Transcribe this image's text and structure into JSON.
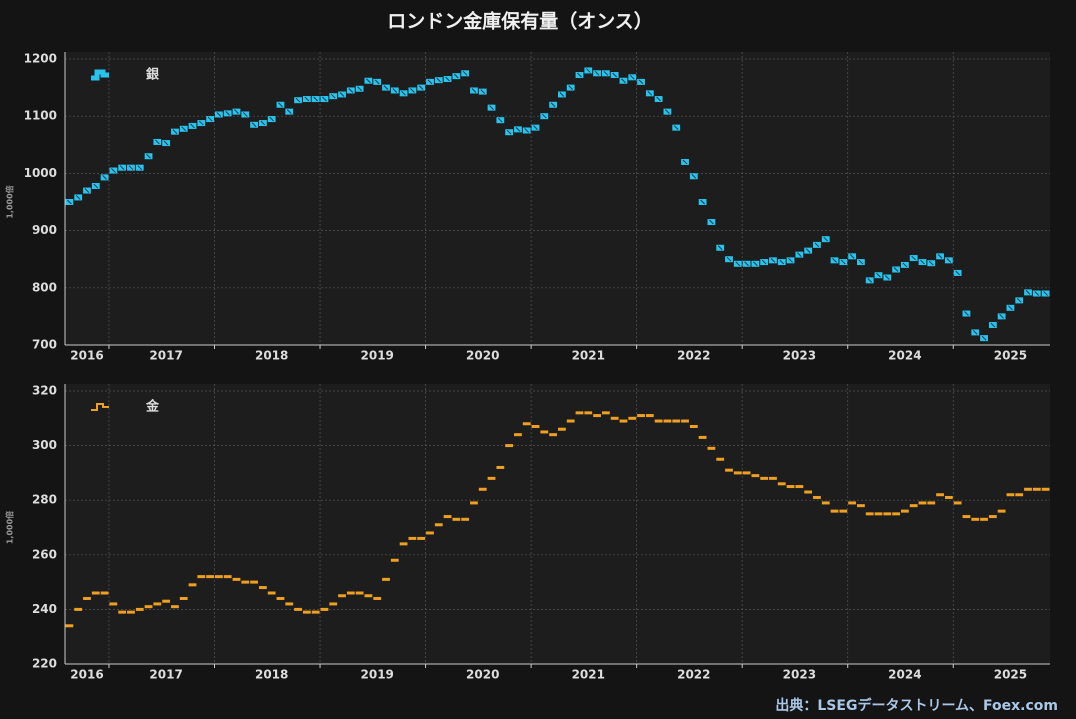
{
  "title": "ロンドン金庫保有量（オンス）",
  "source": "出典：LSEGデータストリーム、Foex.com",
  "chart_data": [
    {
      "type": "step-marker",
      "y_label": "1,000倍",
      "ylim": [
        700,
        1200
      ],
      "yticks": [
        700,
        800,
        900,
        1000,
        1100,
        1200
      ],
      "grid": true,
      "legend": "upper-left",
      "categories": [
        null,
        null,
        "2016",
        null,
        null,
        null,
        null,
        null,
        null,
        null,
        null,
        "2017",
        null,
        null,
        null,
        null,
        null,
        null,
        null,
        null,
        null,
        null,
        null,
        "2018",
        null,
        null,
        null,
        null,
        null,
        null,
        null,
        null,
        null,
        null,
        null,
        "2019",
        null,
        null,
        null,
        null,
        null,
        null,
        null,
        null,
        null,
        null,
        null,
        "2020",
        null,
        null,
        null,
        null,
        null,
        null,
        null,
        null,
        null,
        null,
        null,
        "2021",
        null,
        null,
        null,
        null,
        null,
        null,
        null,
        null,
        null,
        null,
        null,
        "2022",
        null,
        null,
        null,
        null,
        null,
        null,
        null,
        null,
        null,
        null,
        null,
        "2023",
        null,
        null,
        null,
        null,
        null,
        null,
        null,
        null,
        null,
        null,
        null,
        "2024",
        null,
        null,
        null,
        null,
        null,
        null,
        null,
        null,
        null,
        null,
        null,
        "2025",
        null,
        null,
        null,
        null
      ],
      "series": [
        {
          "name": "銀",
          "color": "#29c4ee",
          "values": [
            950,
            958,
            970,
            978,
            993,
            1005,
            1010,
            1010,
            1010,
            1030,
            1055,
            1053,
            1073,
            1078,
            1083,
            1088,
            1095,
            1103,
            1105,
            1108,
            1103,
            1085,
            1088,
            1095,
            1120,
            1108,
            1128,
            1130,
            1130,
            1130,
            1135,
            1138,
            1145,
            1148,
            1162,
            1160,
            1150,
            1145,
            1140,
            1145,
            1150,
            1160,
            1163,
            1165,
            1170,
            1175,
            1145,
            1143,
            1115,
            1093,
            1072,
            1077,
            1075,
            1080,
            1100,
            1120,
            1138,
            1150,
            1172,
            1180,
            1175,
            1175,
            1172,
            1162,
            1168,
            1160,
            1140,
            1130,
            1108,
            1080,
            1020,
            995,
            950,
            915,
            870,
            850,
            842,
            842,
            842,
            845,
            848,
            845,
            848,
            858,
            865,
            875,
            885,
            848,
            845,
            855,
            845,
            813,
            822,
            818,
            832,
            840,
            852,
            845,
            843,
            855,
            848,
            826,
            755,
            722,
            712,
            735,
            750,
            765,
            778,
            792,
            790,
            790
          ]
        }
      ]
    },
    {
      "type": "step-marker",
      "y_label": "1,000倍",
      "ylim": [
        220,
        320
      ],
      "yticks": [
        220,
        240,
        260,
        280,
        300,
        320
      ],
      "grid": true,
      "legend": "upper-left",
      "categories": [
        null,
        null,
        "2016",
        null,
        null,
        null,
        null,
        null,
        null,
        null,
        null,
        "2017",
        null,
        null,
        null,
        null,
        null,
        null,
        null,
        null,
        null,
        null,
        null,
        "2018",
        null,
        null,
        null,
        null,
        null,
        null,
        null,
        null,
        null,
        null,
        null,
        "2019",
        null,
        null,
        null,
        null,
        null,
        null,
        null,
        null,
        null,
        null,
        null,
        "2020",
        null,
        null,
        null,
        null,
        null,
        null,
        null,
        null,
        null,
        null,
        null,
        "2021",
        null,
        null,
        null,
        null,
        null,
        null,
        null,
        null,
        null,
        null,
        null,
        "2022",
        null,
        null,
        null,
        null,
        null,
        null,
        null,
        null,
        null,
        null,
        null,
        "2023",
        null,
        null,
        null,
        null,
        null,
        null,
        null,
        null,
        null,
        null,
        null,
        "2024",
        null,
        null,
        null,
        null,
        null,
        null,
        null,
        null,
        null,
        null,
        null,
        "2025",
        null,
        null,
        null,
        null
      ],
      "series": [
        {
          "name": "金",
          "color": "#f0a020",
          "values": [
            234,
            240,
            244,
            246,
            246,
            242,
            239,
            239,
            240,
            241,
            242,
            243,
            241,
            244,
            249,
            252,
            252,
            252,
            252,
            251,
            250,
            250,
            248,
            246,
            244,
            242,
            240,
            239,
            239,
            240,
            242,
            245,
            246,
            246,
            245,
            244,
            251,
            258,
            264,
            266,
            266,
            268,
            271,
            274,
            273,
            273,
            279,
            284,
            288,
            292,
            300,
            304,
            308,
            307,
            305,
            304,
            306,
            309,
            312,
            312,
            311,
            312,
            310,
            309,
            310,
            311,
            311,
            309,
            309,
            309,
            309,
            307,
            303,
            299,
            295,
            291,
            290,
            290,
            289,
            288,
            288,
            286,
            285,
            285,
            283,
            281,
            279,
            276,
            276,
            279,
            278,
            275,
            275,
            275,
            275,
            276,
            278,
            279,
            279,
            282,
            281,
            279,
            274,
            273,
            273,
            274,
            276,
            282,
            282,
            284,
            284,
            284
          ]
        }
      ]
    }
  ]
}
